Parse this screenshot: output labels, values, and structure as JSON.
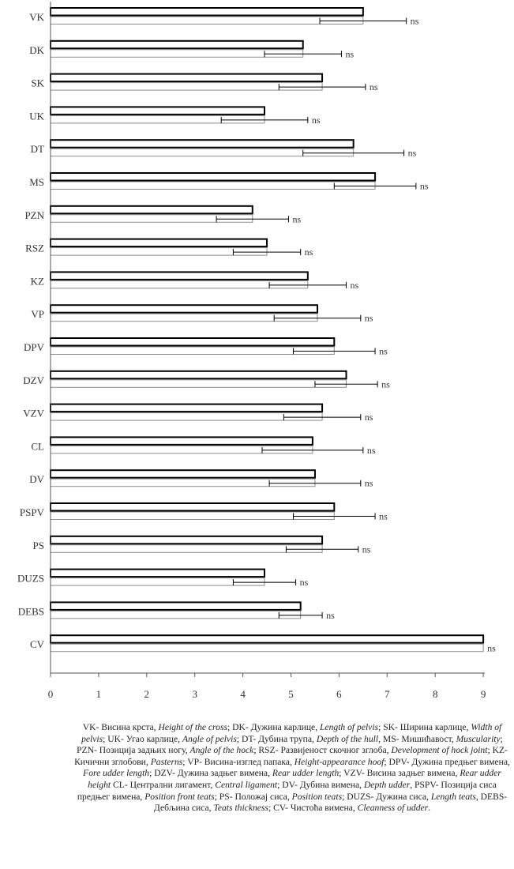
{
  "chart_data": {
    "type": "bar",
    "orientation": "horizontal",
    "categories": [
      "VK",
      "DK",
      "SK",
      "UK",
      "DT",
      "MS",
      "PZN",
      "RSZ",
      "KZ",
      "VP",
      "DPV",
      "DZV",
      "VZV",
      "CL",
      "DV",
      "PSPV",
      "PS",
      "DUZS",
      "DEBS",
      "CV"
    ],
    "series": [
      {
        "group": "dark",
        "values": [
          6.5,
          5.25,
          5.65,
          4.45,
          6.3,
          6.75,
          4.2,
          4.5,
          5.35,
          5.55,
          5.9,
          6.15,
          5.65,
          5.45,
          5.5,
          5.9,
          5.65,
          4.45,
          5.2,
          9.0
        ]
      },
      {
        "group": "light",
        "values": [
          6.5,
          5.25,
          5.65,
          4.45,
          6.3,
          6.75,
          4.2,
          4.5,
          5.35,
          5.55,
          5.9,
          6.15,
          5.65,
          5.45,
          5.5,
          5.9,
          5.65,
          4.45,
          5.2,
          9.0
        ]
      }
    ],
    "error": [
      0.9,
      0.8,
      0.9,
      0.9,
      1.05,
      0.85,
      0.75,
      0.7,
      0.8,
      0.9,
      0.85,
      0.65,
      0.8,
      1.05,
      0.95,
      0.85,
      0.75,
      0.65,
      0.45,
      0.0
    ],
    "significance": [
      "ns",
      "ns",
      "ns",
      "ns",
      "ns",
      "ns",
      "ns",
      "ns",
      "ns",
      "ns",
      "ns",
      "ns",
      "ns",
      "ns",
      "ns",
      "ns",
      "ns",
      "ns",
      "ns",
      "ns"
    ],
    "xlim": [
      0,
      9
    ],
    "xticks": [
      "0",
      "1",
      "2",
      "3",
      "4",
      "5",
      "6",
      "7",
      "8",
      "9"
    ],
    "grid": false,
    "legend": "none"
  },
  "caption": [
    {
      "t": "VK- Висина крста, "
    },
    {
      "t": "Height of the cross",
      "i": true
    },
    {
      "t": "; DK- Дужина карлице, "
    },
    {
      "t": "Length of pelvis",
      "i": true
    },
    {
      "t": "; SK- Ширина карлице, "
    },
    {
      "t": "Width of pelvis",
      "i": true
    },
    {
      "t": "; UK- Угао карлице, "
    },
    {
      "t": "Angle of pelvis",
      "i": true
    },
    {
      "t": "; DT- Дубина трупа, "
    },
    {
      "t": "Depth of the hull",
      "i": true
    },
    {
      "t": ", MS- Мишићавост, "
    },
    {
      "t": "Muscularity",
      "i": true
    },
    {
      "t": "; PZN- Позиција задњих ногу, "
    },
    {
      "t": "Angle of the hock",
      "i": true
    },
    {
      "t": "; RSZ- Развијеност скочног зглоба, "
    },
    {
      "t": "Development of hock joint",
      "i": true
    },
    {
      "t": "; KZ- Кичични зглобови, "
    },
    {
      "t": "Pasterns",
      "i": true
    },
    {
      "t": "; VP- Висина-изглед папака, "
    },
    {
      "t": "Height-appearance hoof",
      "i": true
    },
    {
      "t": "; DPV- Дужина предњег вимена, "
    },
    {
      "t": "Fore udder length",
      "i": true
    },
    {
      "t": "; DZV- Дужина задњег вимена, "
    },
    {
      "t": "Rear udder length",
      "i": true
    },
    {
      "t": "; VZV- Висина задњег вимена, "
    },
    {
      "t": "Rear udder height",
      "i": true
    },
    {
      "t": " CL- Централни лигамент, "
    },
    {
      "t": "Central ligament",
      "i": true
    },
    {
      "t": "; DV- Дубина вимена, "
    },
    {
      "t": "Depth udder",
      "i": true
    },
    {
      "t": ", PSPV- Позиција сиса предњег вимена, "
    },
    {
      "t": "Position front teats",
      "i": true
    },
    {
      "t": "; PS- Положај сиса, "
    },
    {
      "t": "Position teats",
      "i": true
    },
    {
      "t": "; DUZS- Дужина сиса, "
    },
    {
      "t": "Length teats",
      "i": true
    },
    {
      "t": ", DEBS- Дебљина сиса, "
    },
    {
      "t": "Teats thickness",
      "i": true
    },
    {
      "t": "; CV- Чистоћа вимена, "
    },
    {
      "t": "Cleanness of udder",
      "i": true
    },
    {
      "t": "."
    }
  ]
}
